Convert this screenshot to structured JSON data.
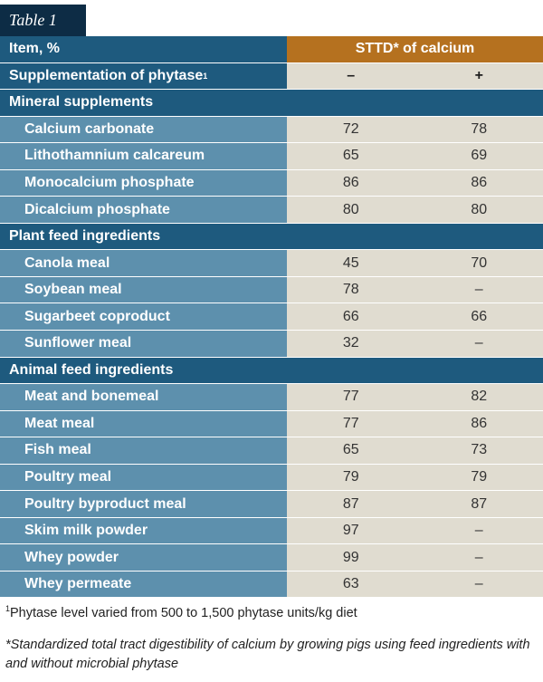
{
  "table_tag": "Table 1",
  "header": {
    "item_label": "Item, %",
    "value_label": "STTD* of calcium"
  },
  "supplementation": {
    "label": "Supplementation of phytase",
    "label_sup": "1",
    "minus": "–",
    "plus": "+"
  },
  "sections": [
    {
      "title": "Mineral supplements",
      "rows": [
        {
          "name": "Calcium carbonate",
          "without": "72",
          "with": "78"
        },
        {
          "name": "Lithothamnium calcareum",
          "without": "65",
          "with": "69"
        },
        {
          "name": "Monocalcium phosphate",
          "without": "86",
          "with": "86"
        },
        {
          "name": "Dicalcium phosphate",
          "without": "80",
          "with": "80"
        }
      ]
    },
    {
      "title": "Plant feed ingredients",
      "rows": [
        {
          "name": "Canola meal",
          "without": "45",
          "with": "70"
        },
        {
          "name": "Soybean meal",
          "without": "78",
          "with": "–"
        },
        {
          "name": "Sugarbeet coproduct",
          "without": "66",
          "with": "66"
        },
        {
          "name": "Sunflower meal",
          "without": "32",
          "with": "–"
        }
      ]
    },
    {
      "title": "Animal feed ingredients",
      "rows": [
        {
          "name": "Meat and bonemeal",
          "without": "77",
          "with": "82"
        },
        {
          "name": "Meat meal",
          "without": "77",
          "with": "86"
        },
        {
          "name": "Fish meal",
          "without": "65",
          "with": "73"
        },
        {
          "name": "Poultry meal",
          "without": "79",
          "with": "79"
        },
        {
          "name": "Poultry byproduct meal",
          "without": "87",
          "with": "87"
        },
        {
          "name": "Skim milk powder",
          "without": "97",
          "with": "–"
        },
        {
          "name": "Whey powder",
          "without": "99",
          "with": "–"
        },
        {
          "name": "Whey permeate",
          "without": "63",
          "with": "–"
        }
      ]
    }
  ],
  "footnotes": {
    "note1_sup": "1",
    "note1": "Phytase level varied from 500 to 1,500 phytase units/kg diet",
    "note2": "*Standardized total tract digestibility of calcium by growing pigs using feed ingredients with and without microbial phytase"
  }
}
